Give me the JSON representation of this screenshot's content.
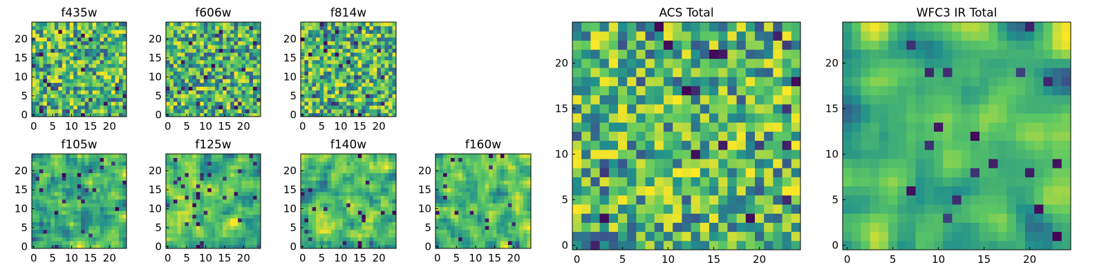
{
  "figure": {
    "colormap": "viridis",
    "colors": [
      "#440154",
      "#3b528b",
      "#21918c",
      "#5ec962",
      "#fde725"
    ],
    "panels": [
      {
        "id": "f435w",
        "title": "f435w",
        "seed": 11
      },
      {
        "id": "f606w",
        "title": "f606w",
        "seed": 23
      },
      {
        "id": "f814w",
        "title": "f814w",
        "seed": 37
      },
      {
        "id": "f105w",
        "title": "f105w",
        "seed": 41
      },
      {
        "id": "f125w",
        "title": "f125w",
        "seed": 53
      },
      {
        "id": "f140w",
        "title": "f140w",
        "seed": 67
      },
      {
        "id": "f160w",
        "title": "f160w",
        "seed": 79
      },
      {
        "id": "acs-total",
        "title": "ACS Total",
        "seed": 97
      },
      {
        "id": "wfc3-ir-total",
        "title": "WFC3 IR Total",
        "seed": 113
      }
    ]
  },
  "chart_data": [
    {
      "type": "heatmap",
      "title": "f435w",
      "grid": [
        25,
        25
      ],
      "xlim": [
        0,
        24
      ],
      "ylim": [
        0,
        24
      ],
      "xticks": [
        0,
        5,
        10,
        15,
        20
      ],
      "yticks": [
        0,
        5,
        10,
        15,
        20
      ],
      "colormap": "viridis"
    },
    {
      "type": "heatmap",
      "title": "f606w",
      "grid": [
        25,
        25
      ],
      "xlim": [
        0,
        24
      ],
      "ylim": [
        0,
        24
      ],
      "xticks": [
        0,
        5,
        10,
        15,
        20
      ],
      "yticks": [
        0,
        5,
        10,
        15,
        20
      ],
      "colormap": "viridis"
    },
    {
      "type": "heatmap",
      "title": "f814w",
      "grid": [
        25,
        25
      ],
      "xlim": [
        0,
        24
      ],
      "ylim": [
        0,
        24
      ],
      "xticks": [
        0,
        5,
        10,
        15,
        20
      ],
      "yticks": [
        0,
        5,
        10,
        15,
        20
      ],
      "colormap": "viridis"
    },
    {
      "type": "heatmap",
      "title": "f105w",
      "grid": [
        25,
        25
      ],
      "xlim": [
        0,
        24
      ],
      "ylim": [
        0,
        24
      ],
      "xticks": [
        0,
        5,
        10,
        15,
        20
      ],
      "yticks": [
        0,
        5,
        10,
        15,
        20
      ],
      "colormap": "viridis"
    },
    {
      "type": "heatmap",
      "title": "f125w",
      "grid": [
        25,
        25
      ],
      "xlim": [
        0,
        24
      ],
      "ylim": [
        0,
        24
      ],
      "xticks": [
        0,
        5,
        10,
        15,
        20
      ],
      "yticks": [
        0,
        5,
        10,
        15,
        20
      ],
      "colormap": "viridis"
    },
    {
      "type": "heatmap",
      "title": "f140w",
      "grid": [
        25,
        25
      ],
      "xlim": [
        0,
        24
      ],
      "ylim": [
        0,
        24
      ],
      "xticks": [
        0,
        5,
        10,
        15,
        20
      ],
      "yticks": [
        0,
        5,
        10,
        15,
        20
      ],
      "colormap": "viridis"
    },
    {
      "type": "heatmap",
      "title": "f160w",
      "grid": [
        25,
        25
      ],
      "xlim": [
        0,
        24
      ],
      "ylim": [
        0,
        24
      ],
      "xticks": [
        0,
        5,
        10,
        15,
        20
      ],
      "yticks": [
        0,
        5,
        10,
        15,
        20
      ],
      "colormap": "viridis"
    },
    {
      "type": "heatmap",
      "title": "ACS Total",
      "grid": [
        25,
        25
      ],
      "xlim": [
        0,
        24
      ],
      "ylim": [
        0,
        24
      ],
      "xticks": [
        0,
        5,
        10,
        15,
        20
      ],
      "yticks": [
        0,
        5,
        10,
        15,
        20
      ],
      "colormap": "viridis"
    },
    {
      "type": "heatmap",
      "title": "WFC3 IR Total",
      "grid": [
        25,
        25
      ],
      "xlim": [
        0,
        24
      ],
      "ylim": [
        0,
        24
      ],
      "xticks": [
        0,
        5,
        10,
        15,
        20
      ],
      "yticks": [
        0,
        5,
        10,
        15,
        20
      ],
      "colormap": "viridis"
    }
  ]
}
